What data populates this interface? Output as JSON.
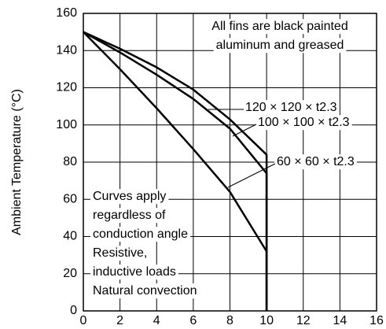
{
  "chart_data": {
    "type": "line",
    "y_label": "Ambient Temperature (°C)",
    "x": [
      0,
      2,
      4,
      6,
      8,
      10,
      10
    ],
    "series": [
      {
        "name": "120 × 120 × t2.3",
        "color": "#000000",
        "values": [
          150,
          141,
          131,
          119,
          103,
          84,
          0
        ]
      },
      {
        "name": "100 × 100 × t2.3",
        "color": "#000000",
        "values": [
          150,
          139,
          127,
          114,
          98,
          74,
          0
        ]
      },
      {
        "name": "60 × 60 × t2.3",
        "color": "#000000",
        "values": [
          150,
          130,
          109,
          87,
          64,
          32,
          0
        ]
      }
    ],
    "xlim": [
      0,
      16
    ],
    "xticks": [
      0,
      2,
      4,
      6,
      8,
      10,
      12,
      14,
      16
    ],
    "ylim": [
      0,
      160
    ],
    "yticks": [
      0,
      20,
      40,
      60,
      80,
      100,
      120,
      140,
      160
    ],
    "grid": true,
    "annotations": {
      "top": [
        "All fins are black painted",
        "aluminum and greased"
      ],
      "bottom": [
        "Curves apply",
        "regardless of",
        "conduction angle",
        "Resistive,",
        "inductive loads",
        "Natural convection"
      ]
    }
  }
}
